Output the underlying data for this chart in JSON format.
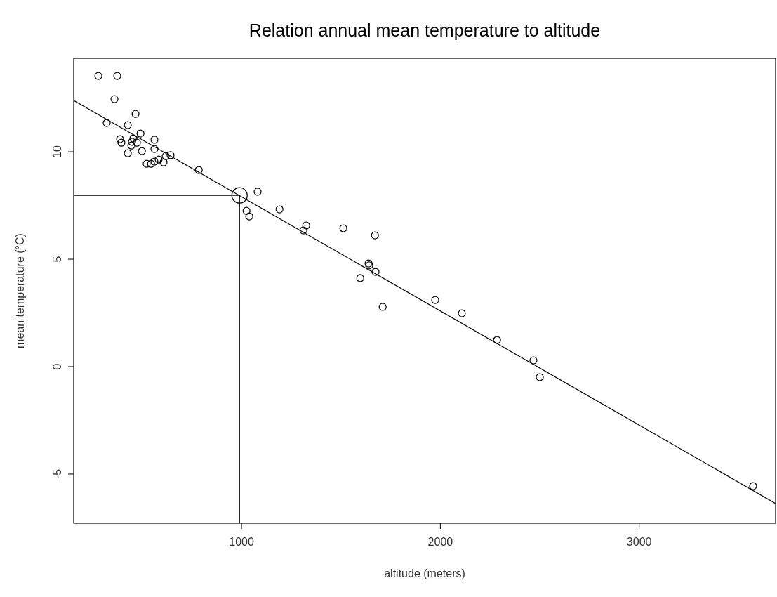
{
  "chart_data": {
    "type": "scatter",
    "title": "Relation annual mean temperature to altitude",
    "xlabel": "altitude (meters)",
    "ylabel": "mean temperature (°C)",
    "xlim": [
      156,
      3686
    ],
    "ylim": [
      -7.29,
      14.35
    ],
    "xticks": [
      1000,
      2000,
      3000
    ],
    "yticks": [
      -5,
      0,
      5,
      10
    ],
    "grid": false,
    "series": [
      {
        "color": "#000000",
        "marker": "circle",
        "x": [
          280,
          375,
          361,
          467,
          322,
          428,
          492,
          389,
          396,
          456,
          449,
          474,
          446,
          562,
          562,
          428,
          499,
          643,
          619,
          523,
          545,
          562,
          583,
          608,
          785,
          1081,
          1025,
          1039,
          1191,
          1325,
          1311,
          1512,
          1671,
          1639,
          1642,
          1674,
          1597,
          1710,
          1974,
          2108,
          2285,
          2468,
          2500,
          3573
        ],
        "values": [
          13.53,
          13.53,
          12.45,
          11.76,
          11.34,
          11.24,
          10.85,
          10.59,
          10.42,
          10.62,
          10.46,
          10.42,
          10.29,
          10.56,
          10.13,
          9.93,
          10.03,
          9.84,
          9.8,
          9.44,
          9.44,
          9.54,
          9.64,
          9.51,
          9.15,
          8.14,
          7.25,
          6.99,
          7.32,
          6.57,
          6.34,
          6.44,
          6.11,
          4.8,
          4.71,
          4.41,
          4.12,
          2.78,
          3.1,
          2.48,
          1.24,
          0.29,
          -0.49,
          -5.56
        ]
      },
      {
        "type": "bubble",
        "color": "#000000",
        "marker": "circle",
        "x": [
          990
        ],
        "values": [
          7.97
        ],
        "sizes": [
          1
        ]
      },
      {
        "type": "line",
        "color": "#000000",
        "x": [
          156,
          3686
        ],
        "values": [
          12.39,
          -6.37
        ]
      }
    ],
    "ref_lines": [
      {
        "axis": "x",
        "value": 990,
        "color": "#000000"
      },
      {
        "axis": "y",
        "value": 7.97,
        "color": "#000000"
      }
    ]
  }
}
